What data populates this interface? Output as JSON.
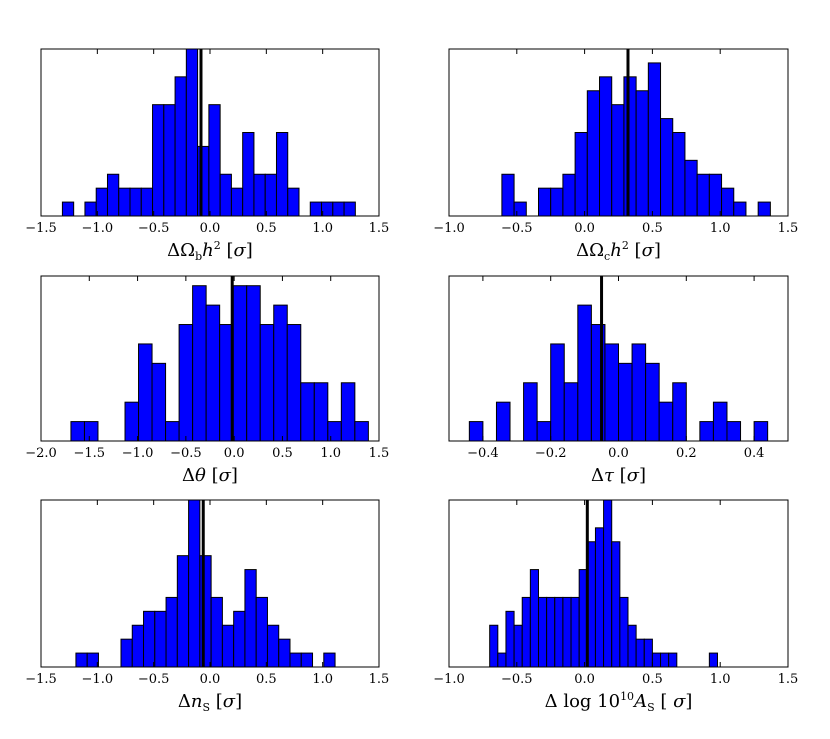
{
  "chart_data": [
    {
      "type": "histogram",
      "xlabel_parts": [
        "Δ",
        "Ω",
        "b",
        "h",
        "2",
        " [",
        "σ",
        "]"
      ],
      "xlim": [
        -1.5,
        1.5
      ],
      "xticks": [
        -1.5,
        -1.0,
        -0.5,
        0.0,
        0.5,
        1.0,
        1.5
      ],
      "xtick_labels": [
        "−1.5",
        "−1.0",
        "−0.5",
        "0.0",
        "0.5",
        "1.0",
        "1.5"
      ],
      "ymax": 12,
      "marker": -0.08,
      "bins": [
        [
          -1.31,
          -1.21,
          1
        ],
        [
          -1.21,
          -1.11,
          0
        ],
        [
          -1.11,
          -1.01,
          1
        ],
        [
          -1.01,
          -0.91,
          2
        ],
        [
          -0.91,
          -0.81,
          3
        ],
        [
          -0.81,
          -0.71,
          2
        ],
        [
          -0.71,
          -0.61,
          2
        ],
        [
          -0.61,
          -0.51,
          2
        ],
        [
          -0.51,
          -0.41,
          8
        ],
        [
          -0.41,
          -0.31,
          8
        ],
        [
          -0.31,
          -0.21,
          10
        ],
        [
          -0.21,
          -0.11,
          12
        ],
        [
          -0.11,
          -0.01,
          5
        ],
        [
          -0.01,
          0.09,
          8
        ],
        [
          0.09,
          0.19,
          3
        ],
        [
          0.19,
          0.29,
          2
        ],
        [
          0.29,
          0.39,
          6
        ],
        [
          0.39,
          0.49,
          3
        ],
        [
          0.49,
          0.59,
          3
        ],
        [
          0.59,
          0.69,
          6
        ],
        [
          0.69,
          0.79,
          2
        ],
        [
          0.79,
          0.89,
          0
        ],
        [
          0.89,
          0.99,
          1
        ],
        [
          0.99,
          1.09,
          1
        ],
        [
          1.09,
          1.19,
          1
        ],
        [
          1.19,
          1.29,
          1
        ]
      ]
    },
    {
      "type": "histogram",
      "xlabel_parts": [
        "Δ",
        "Ω",
        "c",
        "h",
        "2",
        " [",
        "σ",
        "]"
      ],
      "xlim": [
        -1.0,
        1.5
      ],
      "xticks": [
        -1.0,
        -0.5,
        0.0,
        0.5,
        1.0,
        1.5
      ],
      "xtick_labels": [
        "−1.0",
        "−0.5",
        "0.0",
        "0.5",
        "1.0",
        "1.5"
      ],
      "ymax": 12,
      "marker": 0.32,
      "bins": [
        [
          -0.61,
          -0.52,
          3
        ],
        [
          -0.52,
          -0.43,
          1
        ],
        [
          -0.43,
          -0.34,
          0
        ],
        [
          -0.34,
          -0.25,
          2
        ],
        [
          -0.25,
          -0.16,
          2
        ],
        [
          -0.16,
          -0.07,
          3
        ],
        [
          -0.07,
          0.02,
          6
        ],
        [
          0.02,
          0.11,
          9
        ],
        [
          0.11,
          0.2,
          10
        ],
        [
          0.2,
          0.29,
          8
        ],
        [
          0.29,
          0.38,
          10
        ],
        [
          0.38,
          0.47,
          9
        ],
        [
          0.47,
          0.56,
          11
        ],
        [
          0.56,
          0.65,
          7
        ],
        [
          0.65,
          0.74,
          6
        ],
        [
          0.74,
          0.83,
          4
        ],
        [
          0.83,
          0.92,
          3
        ],
        [
          0.92,
          1.01,
          3
        ],
        [
          1.01,
          1.1,
          2
        ],
        [
          1.1,
          1.19,
          1
        ],
        [
          1.19,
          1.28,
          0
        ],
        [
          1.28,
          1.37,
          1
        ]
      ]
    },
    {
      "type": "histogram",
      "xlabel_parts": [
        "Δ",
        "",
        "",
        "θ",
        "",
        " [",
        "σ",
        "]"
      ],
      "xlim": [
        -2.0,
        1.5
      ],
      "xticks": [
        -2.0,
        -1.5,
        -1.0,
        -0.5,
        0.0,
        0.5,
        1.0,
        1.5
      ],
      "xtick_labels": [
        "−2.0",
        "−1.5",
        "−1.0",
        "−0.5",
        "0.0",
        "0.5",
        "1.0",
        "1.5"
      ],
      "ymax": 8.5,
      "marker": -0.02,
      "bins": [
        [
          -1.69,
          -1.55,
          1
        ],
        [
          -1.55,
          -1.41,
          1
        ],
        [
          -1.41,
          -1.27,
          0
        ],
        [
          -1.27,
          -1.13,
          0
        ],
        [
          -1.13,
          -0.99,
          2
        ],
        [
          -0.99,
          -0.85,
          5
        ],
        [
          -0.85,
          -0.71,
          4
        ],
        [
          -0.71,
          -0.57,
          1
        ],
        [
          -0.57,
          -0.43,
          6
        ],
        [
          -0.43,
          -0.29,
          8
        ],
        [
          -0.29,
          -0.15,
          7
        ],
        [
          -0.15,
          -0.01,
          6
        ],
        [
          -0.01,
          0.13,
          8
        ],
        [
          0.13,
          0.27,
          8
        ],
        [
          0.27,
          0.41,
          6
        ],
        [
          0.41,
          0.55,
          7
        ],
        [
          0.55,
          0.69,
          6
        ],
        [
          0.69,
          0.83,
          3
        ],
        [
          0.83,
          0.97,
          3
        ],
        [
          0.97,
          1.11,
          1
        ],
        [
          1.11,
          1.25,
          3
        ],
        [
          1.25,
          1.39,
          1
        ]
      ]
    },
    {
      "type": "histogram",
      "xlabel_parts": [
        "Δ",
        "",
        "",
        "τ",
        "",
        " [",
        "σ",
        "]"
      ],
      "xlim": [
        -0.5,
        0.5
      ],
      "xticks": [
        -0.4,
        -0.2,
        0.0,
        0.2,
        0.4
      ],
      "xtick_labels": [
        "−0.4",
        "−0.2",
        "0.0",
        "0.2",
        "0.4"
      ],
      "ymax": 8.5,
      "marker": -0.05,
      "bins": [
        [
          -0.44,
          -0.4,
          1
        ],
        [
          -0.4,
          -0.36,
          0
        ],
        [
          -0.36,
          -0.32,
          2
        ],
        [
          -0.32,
          -0.28,
          0
        ],
        [
          -0.28,
          -0.24,
          3
        ],
        [
          -0.24,
          -0.2,
          1
        ],
        [
          -0.2,
          -0.16,
          5
        ],
        [
          -0.16,
          -0.12,
          3
        ],
        [
          -0.12,
          -0.08,
          7
        ],
        [
          -0.08,
          -0.04,
          6
        ],
        [
          -0.04,
          0.0,
          5
        ],
        [
          0.0,
          0.04,
          4
        ],
        [
          0.04,
          0.08,
          5
        ],
        [
          0.08,
          0.12,
          4
        ],
        [
          0.12,
          0.16,
          2
        ],
        [
          0.16,
          0.2,
          3
        ],
        [
          0.2,
          0.24,
          0
        ],
        [
          0.24,
          0.28,
          1
        ],
        [
          0.28,
          0.32,
          2
        ],
        [
          0.32,
          0.36,
          1
        ],
        [
          0.36,
          0.4,
          0
        ],
        [
          0.4,
          0.44,
          1
        ]
      ]
    },
    {
      "type": "histogram",
      "xlabel_parts": [
        "Δ",
        "n",
        "S",
        "",
        "",
        " [",
        "σ",
        "]"
      ],
      "xlim": [
        -1.5,
        1.5
      ],
      "xticks": [
        -1.5,
        -1.0,
        -0.5,
        0.0,
        0.5,
        1.0,
        1.5
      ],
      "xtick_labels": [
        "−1.5",
        "−1.0",
        "−0.5",
        "0.0",
        "0.5",
        "1.0",
        "1.5"
      ],
      "ymax": 12,
      "marker": -0.06,
      "bins": [
        [
          -1.19,
          -1.09,
          1
        ],
        [
          -1.09,
          -0.99,
          1
        ],
        [
          -0.99,
          -0.89,
          0
        ],
        [
          -0.89,
          -0.79,
          0
        ],
        [
          -0.79,
          -0.69,
          2
        ],
        [
          -0.69,
          -0.59,
          3
        ],
        [
          -0.59,
          -0.49,
          4
        ],
        [
          -0.49,
          -0.39,
          4
        ],
        [
          -0.39,
          -0.29,
          5
        ],
        [
          -0.29,
          -0.19,
          8
        ],
        [
          -0.19,
          -0.09,
          12
        ],
        [
          -0.09,
          0.01,
          8
        ],
        [
          0.01,
          0.11,
          5
        ],
        [
          0.11,
          0.21,
          3
        ],
        [
          0.21,
          0.31,
          4
        ],
        [
          0.31,
          0.41,
          7
        ],
        [
          0.41,
          0.51,
          5
        ],
        [
          0.51,
          0.61,
          3
        ],
        [
          0.61,
          0.71,
          2
        ],
        [
          0.71,
          0.81,
          1
        ],
        [
          0.81,
          0.91,
          1
        ],
        [
          0.91,
          1.01,
          0
        ],
        [
          1.01,
          1.11,
          1
        ]
      ]
    },
    {
      "type": "histogram",
      "xlabel_parts": [
        "Δ",
        "log 10",
        "10",
        "A",
        "S",
        " [",
        "σ",
        "]"
      ],
      "xlim": [
        -1.0,
        1.5
      ],
      "xticks": [
        -1.0,
        -0.5,
        0.0,
        0.5,
        1.0,
        1.5
      ],
      "xtick_labels": [
        "−1.0",
        "−0.5",
        "0.0",
        "0.5",
        "1.0",
        "1.5"
      ],
      "ymax": 12,
      "marker": 0.02,
      "bins": [
        [
          -0.7,
          -0.64,
          3
        ],
        [
          -0.64,
          -0.58,
          1
        ],
        [
          -0.58,
          -0.52,
          4
        ],
        [
          -0.52,
          -0.46,
          3
        ],
        [
          -0.46,
          -0.4,
          5
        ],
        [
          -0.4,
          -0.34,
          7
        ],
        [
          -0.34,
          -0.28,
          5
        ],
        [
          -0.28,
          -0.22,
          5
        ],
        [
          -0.22,
          -0.16,
          5
        ],
        [
          -0.16,
          -0.1,
          5
        ],
        [
          -0.1,
          -0.04,
          5
        ],
        [
          -0.04,
          0.02,
          7
        ],
        [
          0.02,
          0.08,
          9
        ],
        [
          0.08,
          0.14,
          10
        ],
        [
          0.14,
          0.2,
          12
        ],
        [
          0.2,
          0.26,
          9
        ],
        [
          0.26,
          0.32,
          5
        ],
        [
          0.32,
          0.38,
          3
        ],
        [
          0.38,
          0.44,
          2
        ],
        [
          0.44,
          0.5,
          2
        ],
        [
          0.5,
          0.56,
          1
        ],
        [
          0.56,
          0.62,
          1
        ],
        [
          0.62,
          0.68,
          1
        ],
        [
          0.68,
          0.74,
          0
        ],
        [
          0.74,
          0.8,
          0
        ],
        [
          0.8,
          0.86,
          0
        ],
        [
          0.86,
          0.92,
          0
        ],
        [
          0.92,
          0.98,
          1
        ]
      ]
    }
  ]
}
